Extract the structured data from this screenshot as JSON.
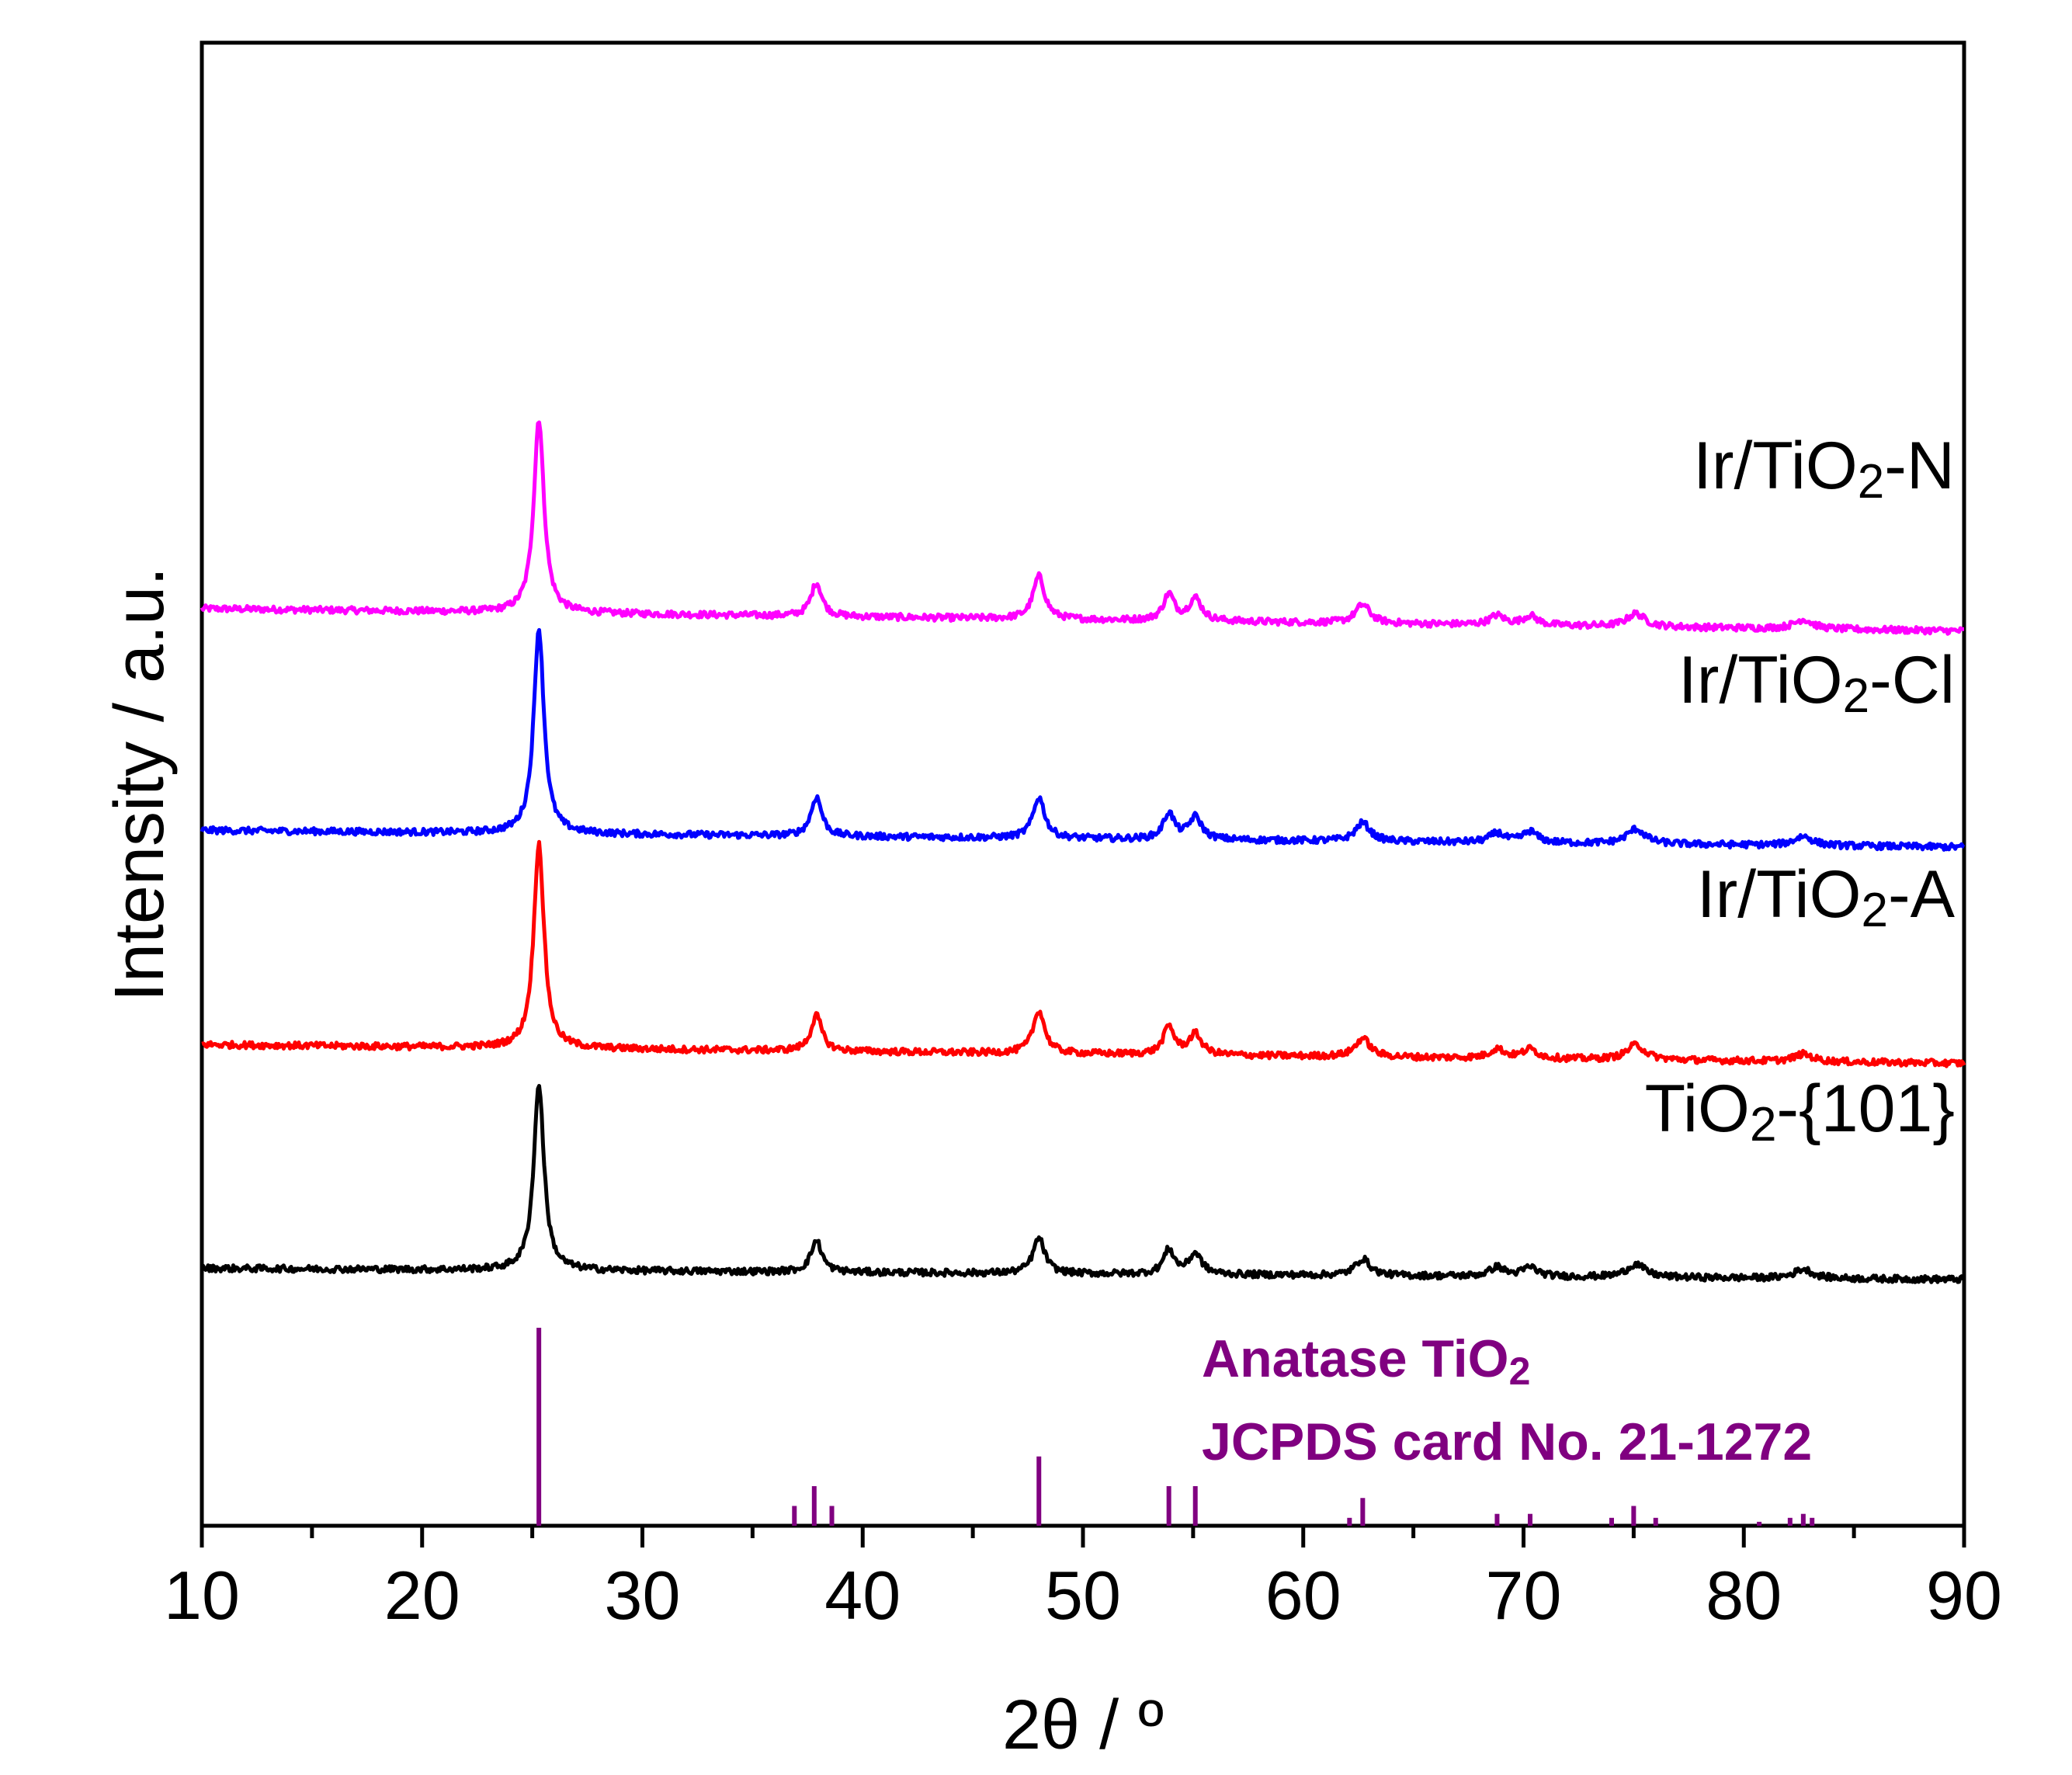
{
  "chart_data": {
    "type": "line",
    "title": "",
    "xlabel": "2θ / º",
    "ylabel": "Intensity / a.u.",
    "xlim": [
      10,
      90
    ],
    "xticks": [
      "10",
      "20",
      "30",
      "40",
      "50",
      "60",
      "70",
      "80",
      "90"
    ],
    "yticks": [],
    "legend_position": "inline-right",
    "series": [
      {
        "name": "Ir/TiO2-N",
        "label_main": "Ir/TiO",
        "label_sub": "2",
        "label_tail": "-N",
        "color": "#ff00ff",
        "baseline_offset": 4,
        "baseline_start": 0.18,
        "baseline_end": 0.06,
        "peaks": [
          {
            "x": 25.3,
            "h": 1.04,
            "w": 0.28
          },
          {
            "x": 37.9,
            "h": 0.18,
            "w": 0.3
          },
          {
            "x": 48.0,
            "h": 0.23,
            "w": 0.32
          },
          {
            "x": 53.9,
            "h": 0.14,
            "w": 0.3
          },
          {
            "x": 55.1,
            "h": 0.12,
            "w": 0.35
          },
          {
            "x": 62.7,
            "h": 0.1,
            "w": 0.4
          },
          {
            "x": 68.8,
            "h": 0.05,
            "w": 0.4
          },
          {
            "x": 70.3,
            "h": 0.05,
            "w": 0.4
          },
          {
            "x": 75.1,
            "h": 0.07,
            "w": 0.5
          },
          {
            "x": 82.7,
            "h": 0.05,
            "w": 0.5
          }
        ]
      },
      {
        "name": "Ir/TiO2-Cl",
        "label_main": "Ir/TiO",
        "label_sub": "2",
        "label_tail": "-Cl",
        "color": "#0000ff",
        "baseline_offset": 3,
        "baseline_start": 0.14,
        "baseline_end": 0.05,
        "peaks": [
          {
            "x": 25.3,
            "h": 1.1,
            "w": 0.28
          },
          {
            "x": 37.9,
            "h": 0.21,
            "w": 0.3
          },
          {
            "x": 48.0,
            "h": 0.22,
            "w": 0.32
          },
          {
            "x": 53.9,
            "h": 0.14,
            "w": 0.3
          },
          {
            "x": 55.1,
            "h": 0.12,
            "w": 0.35
          },
          {
            "x": 62.7,
            "h": 0.1,
            "w": 0.4
          },
          {
            "x": 68.8,
            "h": 0.05,
            "w": 0.4
          },
          {
            "x": 70.3,
            "h": 0.06,
            "w": 0.4
          },
          {
            "x": 75.1,
            "h": 0.08,
            "w": 0.5
          },
          {
            "x": 82.7,
            "h": 0.05,
            "w": 0.5
          }
        ]
      },
      {
        "name": "Ir/TiO2-A",
        "label_main": "Ir/TiO",
        "label_sub": "2",
        "label_tail": "-A",
        "color": "#ff0000",
        "baseline_offset": 2,
        "baseline_start": 0.14,
        "baseline_end": 0.04,
        "peaks": [
          {
            "x": 25.3,
            "h": 1.1,
            "w": 0.28
          },
          {
            "x": 37.9,
            "h": 0.19,
            "w": 0.3
          },
          {
            "x": 48.0,
            "h": 0.23,
            "w": 0.32
          },
          {
            "x": 53.9,
            "h": 0.15,
            "w": 0.3
          },
          {
            "x": 55.1,
            "h": 0.11,
            "w": 0.35
          },
          {
            "x": 62.7,
            "h": 0.1,
            "w": 0.4
          },
          {
            "x": 68.8,
            "h": 0.05,
            "w": 0.4
          },
          {
            "x": 70.3,
            "h": 0.05,
            "w": 0.4
          },
          {
            "x": 75.1,
            "h": 0.08,
            "w": 0.5
          },
          {
            "x": 82.7,
            "h": 0.04,
            "w": 0.5
          }
        ]
      },
      {
        "name": "TiO2-{101}",
        "label_main": "TiO",
        "label_sub": "2",
        "label_tail": "-{101}",
        "color": "#000000",
        "baseline_offset": 1,
        "baseline_start": 0.09,
        "baseline_end": 0.03,
        "peaks": [
          {
            "x": 25.3,
            "h": 1.0,
            "w": 0.28
          },
          {
            "x": 37.9,
            "h": 0.17,
            "w": 0.3
          },
          {
            "x": 48.0,
            "h": 0.19,
            "w": 0.32
          },
          {
            "x": 53.9,
            "h": 0.13,
            "w": 0.3
          },
          {
            "x": 55.1,
            "h": 0.11,
            "w": 0.35
          },
          {
            "x": 62.7,
            "h": 0.09,
            "w": 0.4
          },
          {
            "x": 68.8,
            "h": 0.05,
            "w": 0.4
          },
          {
            "x": 70.3,
            "h": 0.05,
            "w": 0.4
          },
          {
            "x": 75.1,
            "h": 0.07,
            "w": 0.5
          },
          {
            "x": 82.7,
            "h": 0.05,
            "w": 0.5
          }
        ]
      }
    ],
    "reference": {
      "name": "Anatase TiO2 JCPDS card No. 21-1272",
      "line1_main": "Anatase TiO",
      "line1_sub": "2",
      "line2": "JCPDS card No. 21-1272",
      "color": "#800080",
      "lines": [
        {
          "x": 25.3,
          "i": 100
        },
        {
          "x": 36.9,
          "i": 10
        },
        {
          "x": 37.8,
          "i": 20
        },
        {
          "x": 38.6,
          "i": 10
        },
        {
          "x": 48.0,
          "i": 35
        },
        {
          "x": 53.9,
          "i": 20
        },
        {
          "x": 55.1,
          "i": 20
        },
        {
          "x": 62.1,
          "i": 4
        },
        {
          "x": 62.7,
          "i": 14
        },
        {
          "x": 68.8,
          "i": 6
        },
        {
          "x": 70.3,
          "i": 6
        },
        {
          "x": 74.0,
          "i": 4
        },
        {
          "x": 75.0,
          "i": 10
        },
        {
          "x": 76.0,
          "i": 4
        },
        {
          "x": 80.7,
          "i": 2
        },
        {
          "x": 82.1,
          "i": 4
        },
        {
          "x": 82.7,
          "i": 6
        },
        {
          "x": 83.1,
          "i": 4
        }
      ]
    }
  }
}
